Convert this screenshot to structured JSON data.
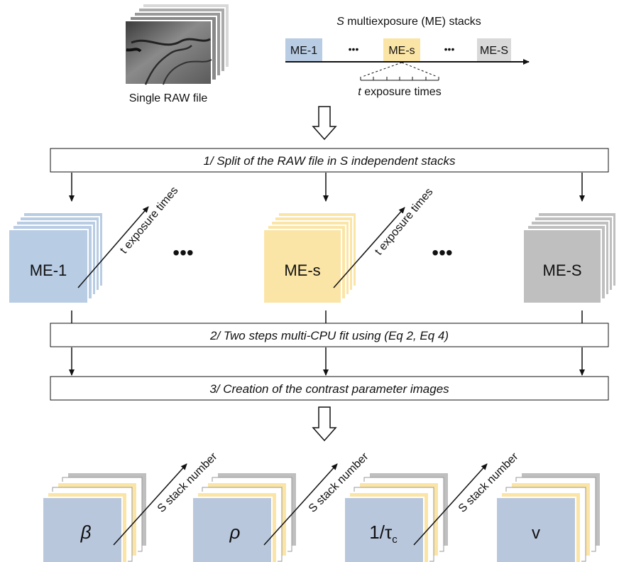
{
  "header": {
    "raw_caption": "Single RAW file",
    "stacks_title_var": "S",
    "stacks_title_rest": " multiexposure (ME) stacks",
    "timeline_items": [
      "ME-1",
      "•••",
      "ME-s",
      "•••",
      "ME-S"
    ],
    "exposure_caption_var": "t",
    "exposure_caption_rest": " exposure times"
  },
  "steps": [
    "1/ Split of the RAW file in S independent stacks",
    "2/ Two steps multi-CPU fit using (Eq 2, Eq 4)",
    "3/ Creation of the contrast parameter images"
  ],
  "stacks": [
    {
      "label": "ME-1",
      "axis_label": "t exposure times",
      "color": "#b8cce4"
    },
    {
      "label": "ME-s",
      "axis_label": "t exposure times",
      "color": "#fbe5a6"
    },
    {
      "label": "ME-S",
      "axis_label": "",
      "color": "#bfbfbf"
    }
  ],
  "stack_ellipsis": "•••",
  "outputs": [
    {
      "symbol": "β",
      "axis_label": "S stack number"
    },
    {
      "symbol": "ρ",
      "axis_label": "S stack number"
    },
    {
      "symbol": "1/τ",
      "subscript": "c",
      "axis_label": "S stack number"
    },
    {
      "symbol": "v",
      "axis_label": ""
    }
  ],
  "colors": {
    "blue": "#b8cce4",
    "yellow": "#fbe5a6",
    "gray": "#bfbfbf",
    "output_blue": "#b9c7dd"
  }
}
